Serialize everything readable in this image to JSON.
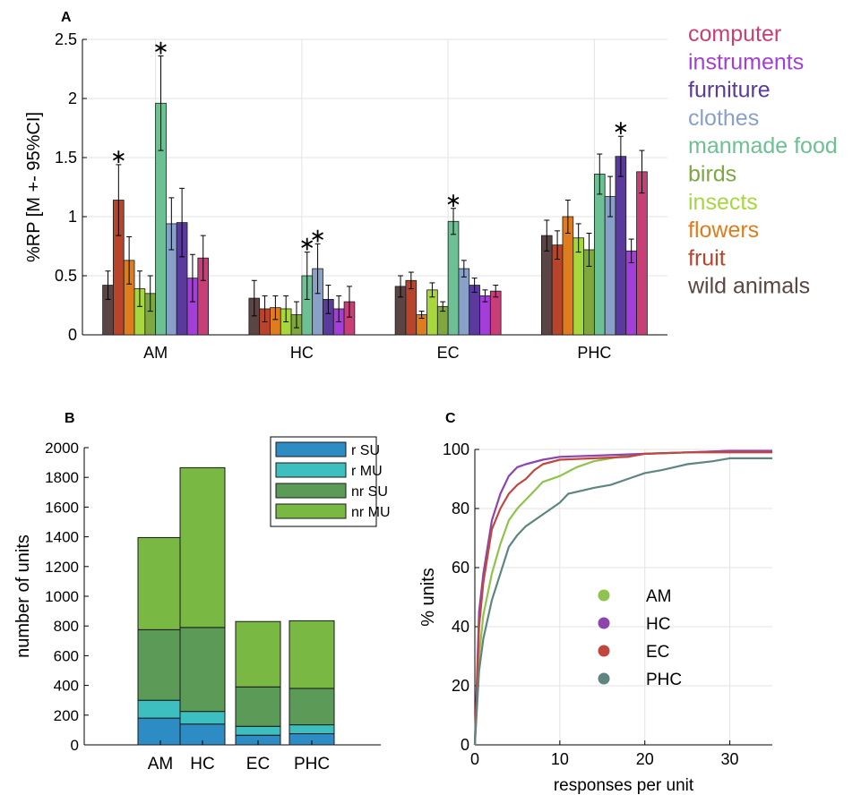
{
  "chart_data": [
    {
      "panel": "A",
      "type": "bar",
      "ylabel": "%RP [M +- 95%CI]",
      "ylim": [
        0,
        2.5
      ],
      "yticks": [
        "0",
        "0.5",
        "1",
        "1.5",
        "2",
        "2.5"
      ],
      "categories": [
        "AM",
        "HC",
        "EC",
        "PHC"
      ],
      "grid": true,
      "legend_position": "outside-right",
      "series": [
        {
          "name": "wild animals",
          "color": "#5a4544",
          "values": [
            0.42,
            0.31,
            0.41,
            0.84
          ],
          "err": [
            0.12,
            0.15,
            0.09,
            0.13
          ]
        },
        {
          "name": "fruit",
          "color": "#b8442b",
          "values": [
            1.14,
            0.22,
            0.46,
            0.76
          ],
          "err": [
            0.3,
            0.11,
            0.07,
            0.12
          ]
        },
        {
          "name": "flowers",
          "color": "#dd7d1e",
          "values": [
            0.63,
            0.23,
            0.17,
            1.0
          ],
          "err": [
            0.2,
            0.1,
            0.03,
            0.14
          ]
        },
        {
          "name": "insects",
          "color": "#a8d63d",
          "values": [
            0.39,
            0.22,
            0.38,
            0.82
          ],
          "err": [
            0.15,
            0.11,
            0.06,
            0.12
          ]
        },
        {
          "name": "birds",
          "color": "#7fa63f",
          "values": [
            0.35,
            0.17,
            0.24,
            0.72
          ],
          "err": [
            0.15,
            0.11,
            0.04,
            0.14
          ]
        },
        {
          "name": "manmade food",
          "color": "#6dbf94",
          "values": [
            1.96,
            0.5,
            0.96,
            1.36
          ],
          "err": [
            0.4,
            0.2,
            0.11,
            0.17
          ]
        },
        {
          "name": "clothes",
          "color": "#89a0c9",
          "values": [
            0.94,
            0.56,
            0.56,
            1.17
          ],
          "err": [
            0.22,
            0.21,
            0.07,
            0.17
          ]
        },
        {
          "name": "furniture",
          "color": "#5a3a9c",
          "values": [
            0.95,
            0.3,
            0.42,
            1.51
          ],
          "err": [
            0.29,
            0.12,
            0.06,
            0.17
          ]
        },
        {
          "name": "instruments",
          "color": "#a43ed8",
          "values": [
            0.48,
            0.22,
            0.33,
            0.71
          ],
          "err": [
            0.2,
            0.11,
            0.05,
            0.1
          ]
        },
        {
          "name": "computer",
          "color": "#c83f78",
          "values": [
            0.65,
            0.28,
            0.37,
            1.38
          ],
          "err": [
            0.19,
            0.13,
            0.05,
            0.18
          ]
        }
      ],
      "significance_marker": "∗",
      "significant": [
        {
          "category": "AM",
          "series": "fruit"
        },
        {
          "category": "AM",
          "series": "manmade food"
        },
        {
          "category": "HC",
          "series": "manmade food"
        },
        {
          "category": "HC",
          "series": "clothes"
        },
        {
          "category": "EC",
          "series": "manmade food"
        },
        {
          "category": "PHC",
          "series": "furniture"
        }
      ]
    },
    {
      "panel": "B",
      "type": "bar",
      "stacked": true,
      "ylabel": "number of units",
      "ylim": [
        0,
        2000
      ],
      "yticks": [
        "0",
        "200",
        "400",
        "600",
        "800",
        "1000",
        "1200",
        "1400",
        "1600",
        "1800",
        "2000"
      ],
      "categories": [
        "AM",
        "HC",
        "EC",
        "PHC"
      ],
      "legend_position": "top-right",
      "series": [
        {
          "name": "r SU",
          "color": "#2e8cc4",
          "values": [
            180,
            140,
            65,
            75
          ]
        },
        {
          "name": "r MU",
          "color": "#3dbfbf",
          "values": [
            120,
            85,
            60,
            60
          ]
        },
        {
          "name": "nr SU",
          "color": "#5b9a57",
          "values": [
            475,
            565,
            265,
            245
          ]
        },
        {
          "name": "nr MU",
          "color": "#7ab844",
          "values": [
            620,
            1075,
            440,
            455
          ]
        }
      ]
    },
    {
      "panel": "C",
      "type": "line",
      "xlabel": "responses per unit",
      "ylabel": "% units",
      "xlim": [
        0,
        35
      ],
      "ylim": [
        0,
        100
      ],
      "xticks": [
        "0",
        "10",
        "20",
        "30"
      ],
      "yticks": [
        "0",
        "20",
        "40",
        "60",
        "80",
        "100"
      ],
      "grid": true,
      "legend_position": "center",
      "series": [
        {
          "name": "AM",
          "color": "#8fc24e",
          "x": [
            0,
            0.5,
            1,
            2,
            3,
            4,
            5,
            6,
            7,
            8,
            10,
            12,
            14,
            16,
            18,
            20,
            25,
            30,
            35
          ],
          "y": [
            0,
            30,
            44,
            58,
            68,
            76,
            80,
            83,
            86,
            89,
            91,
            94,
            96,
            97,
            98,
            98.5,
            99,
            99.5,
            99.5
          ]
        },
        {
          "name": "HC",
          "color": "#8e44ad",
          "x": [
            0,
            0.5,
            1,
            2,
            3,
            4,
            5,
            6,
            8,
            10,
            15,
            20,
            25,
            30,
            35
          ],
          "y": [
            0,
            45,
            58,
            76,
            85,
            91,
            94,
            95,
            96.5,
            97.5,
            98,
            98.5,
            99,
            99.5,
            99.5
          ]
        },
        {
          "name": "EC",
          "color": "#c0473d",
          "x": [
            0,
            0.5,
            1,
            2,
            3,
            4,
            5,
            6,
            7,
            8,
            10,
            14,
            18,
            20,
            25,
            30,
            35
          ],
          "y": [
            0,
            40,
            55,
            73,
            80,
            85,
            88,
            90,
            93,
            95,
            96.5,
            97,
            97.5,
            98.5,
            99,
            99,
            99
          ]
        },
        {
          "name": "PHC",
          "color": "#5e8580",
          "x": [
            0,
            0.5,
            1,
            2,
            3,
            4,
            5,
            6,
            8,
            10,
            11,
            14,
            16,
            18,
            20,
            22,
            25,
            28,
            30,
            35
          ],
          "y": [
            0,
            25,
            36,
            49,
            58,
            67,
            71,
            74,
            78,
            82,
            85,
            87,
            88,
            90,
            92,
            93,
            95,
            96,
            97,
            97
          ]
        }
      ]
    }
  ]
}
